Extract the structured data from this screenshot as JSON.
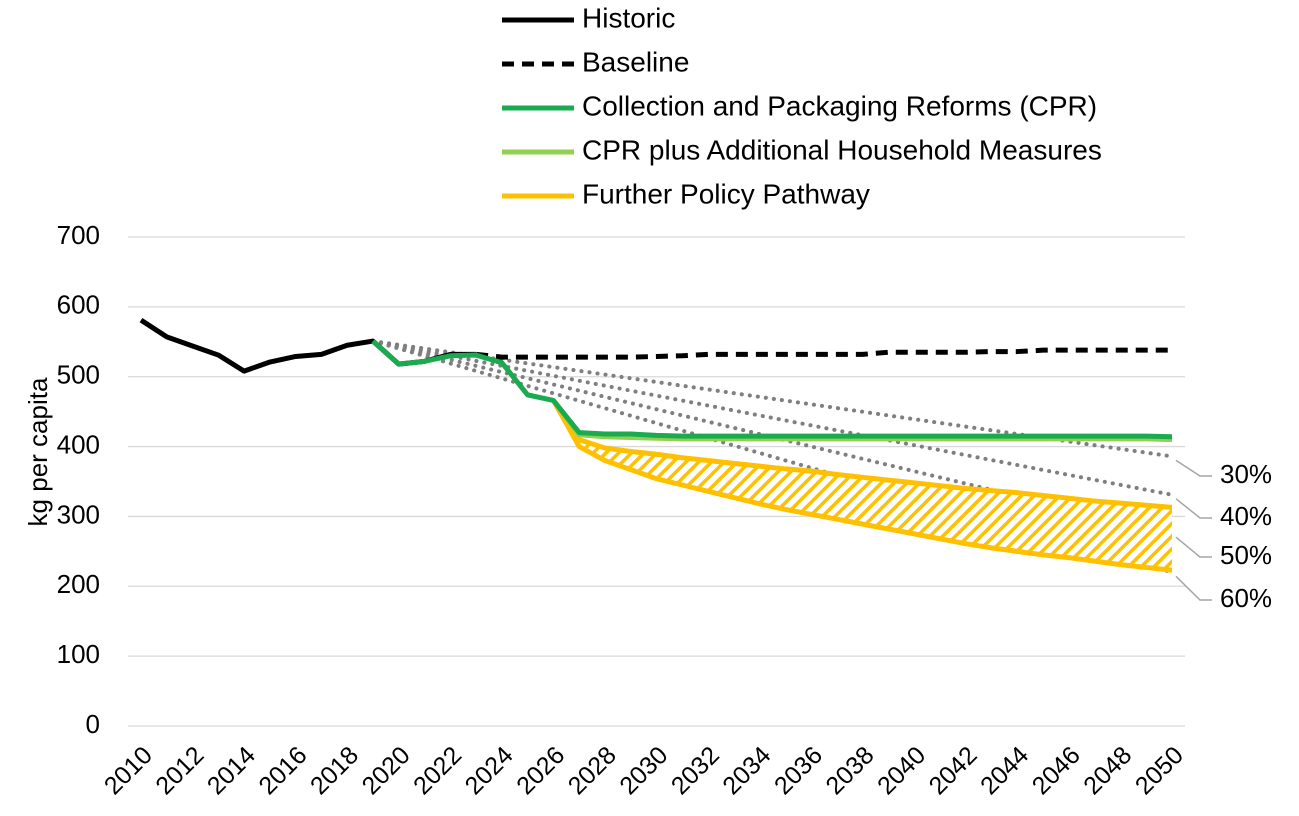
{
  "chart_data": {
    "type": "line",
    "y_label": "kg per capita",
    "x": [
      2010,
      2011,
      2012,
      2013,
      2014,
      2015,
      2016,
      2017,
      2018,
      2019,
      2020,
      2021,
      2022,
      2023,
      2024,
      2025,
      2026,
      2027,
      2028,
      2029,
      2030,
      2031,
      2032,
      2033,
      2034,
      2035,
      2036,
      2037,
      2038,
      2039,
      2040,
      2041,
      2042,
      2043,
      2044,
      2045,
      2046,
      2047,
      2048,
      2049,
      2050
    ],
    "xlim": [
      2010,
      2050
    ],
    "xticks": [
      2010,
      2012,
      2014,
      2016,
      2018,
      2020,
      2022,
      2024,
      2026,
      2028,
      2030,
      2032,
      2034,
      2036,
      2038,
      2040,
      2042,
      2044,
      2046,
      2048,
      2050
    ],
    "ylim": [
      0,
      700
    ],
    "yticks": [
      0,
      100,
      200,
      300,
      400,
      500,
      600,
      700
    ],
    "grid": true,
    "series": [
      {
        "name": "Historic",
        "color": "#000000",
        "dash": "solid",
        "values": [
          581,
          557,
          544,
          531,
          508,
          521,
          529,
          532,
          545,
          551,
          518,
          522,
          532,
          532,
          null,
          null,
          null,
          null,
          null,
          null,
          null,
          null,
          null,
          null,
          null,
          null,
          null,
          null,
          null,
          null,
          null,
          null,
          null,
          null,
          null,
          null,
          null,
          null,
          null,
          null,
          null
        ]
      },
      {
        "name": "Baseline",
        "color": "#000000",
        "dash": "dashed",
        "values": [
          null,
          null,
          null,
          null,
          null,
          null,
          null,
          null,
          null,
          null,
          null,
          null,
          null,
          532,
          528,
          528,
          528,
          528,
          528,
          528,
          529,
          530,
          532,
          532,
          532,
          532,
          532,
          532,
          532,
          535,
          535,
          535,
          535,
          536,
          536,
          538,
          538,
          538,
          538,
          538,
          538
        ]
      },
      {
        "name": "Collection and Packaging Reforms (CPR)",
        "color": "#1aaa50",
        "dash": "solid",
        "values": [
          null,
          null,
          null,
          null,
          null,
          null,
          null,
          null,
          null,
          551,
          518,
          522,
          530,
          531,
          520,
          474,
          466,
          420,
          418,
          418,
          416,
          415,
          415,
          415,
          415,
          415,
          415,
          415,
          415,
          415,
          415,
          415,
          415,
          415,
          415,
          415,
          415,
          415,
          415,
          415,
          414
        ]
      },
      {
        "name": "CPR plus Additional Household Measures",
        "color": "#92d050",
        "dash": "solid",
        "values": [
          null,
          null,
          null,
          null,
          null,
          null,
          null,
          null,
          null,
          null,
          null,
          null,
          null,
          null,
          null,
          null,
          466,
          417,
          414,
          413,
          412,
          411,
          411,
          411,
          411,
          411,
          411,
          411,
          411,
          411,
          411,
          411,
          411,
          411,
          411,
          411,
          411,
          411,
          411,
          411,
          410
        ]
      },
      {
        "name": "Further Policy Pathway",
        "color": "#ffc000",
        "dash": "band",
        "values": [
          null,
          null,
          null,
          null,
          null,
          null,
          null,
          null,
          null,
          null,
          null,
          null,
          null,
          null,
          null,
          null,
          466,
          410,
          398,
          393,
          389,
          384,
          380,
          376,
          372,
          368,
          365,
          360,
          356,
          352,
          348,
          344,
          340,
          337,
          334,
          330,
          326,
          322,
          319,
          316,
          313
        ],
        "values_low": [
          null,
          null,
          null,
          null,
          null,
          null,
          null,
          null,
          null,
          null,
          null,
          null,
          null,
          null,
          null,
          null,
          466,
          400,
          380,
          367,
          354,
          345,
          336,
          327,
          318,
          310,
          303,
          296,
          289,
          282,
          275,
          268,
          261,
          255,
          250,
          245,
          241,
          236,
          231,
          227,
          223
        ]
      }
    ],
    "targets": {
      "color": "#7f7f7f",
      "lines": [
        {
          "label": "30%",
          "x": [
            2019,
            2050
          ],
          "values": [
            551,
            386
          ]
        },
        {
          "label": "40%",
          "x": [
            2019,
            2050
          ],
          "values": [
            551,
            331
          ]
        },
        {
          "label": "50%",
          "x": [
            2019,
            2050
          ],
          "values": [
            551,
            276
          ]
        },
        {
          "label": "60%",
          "x": [
            2019,
            2050
          ],
          "values": [
            551,
            220
          ]
        }
      ]
    }
  }
}
